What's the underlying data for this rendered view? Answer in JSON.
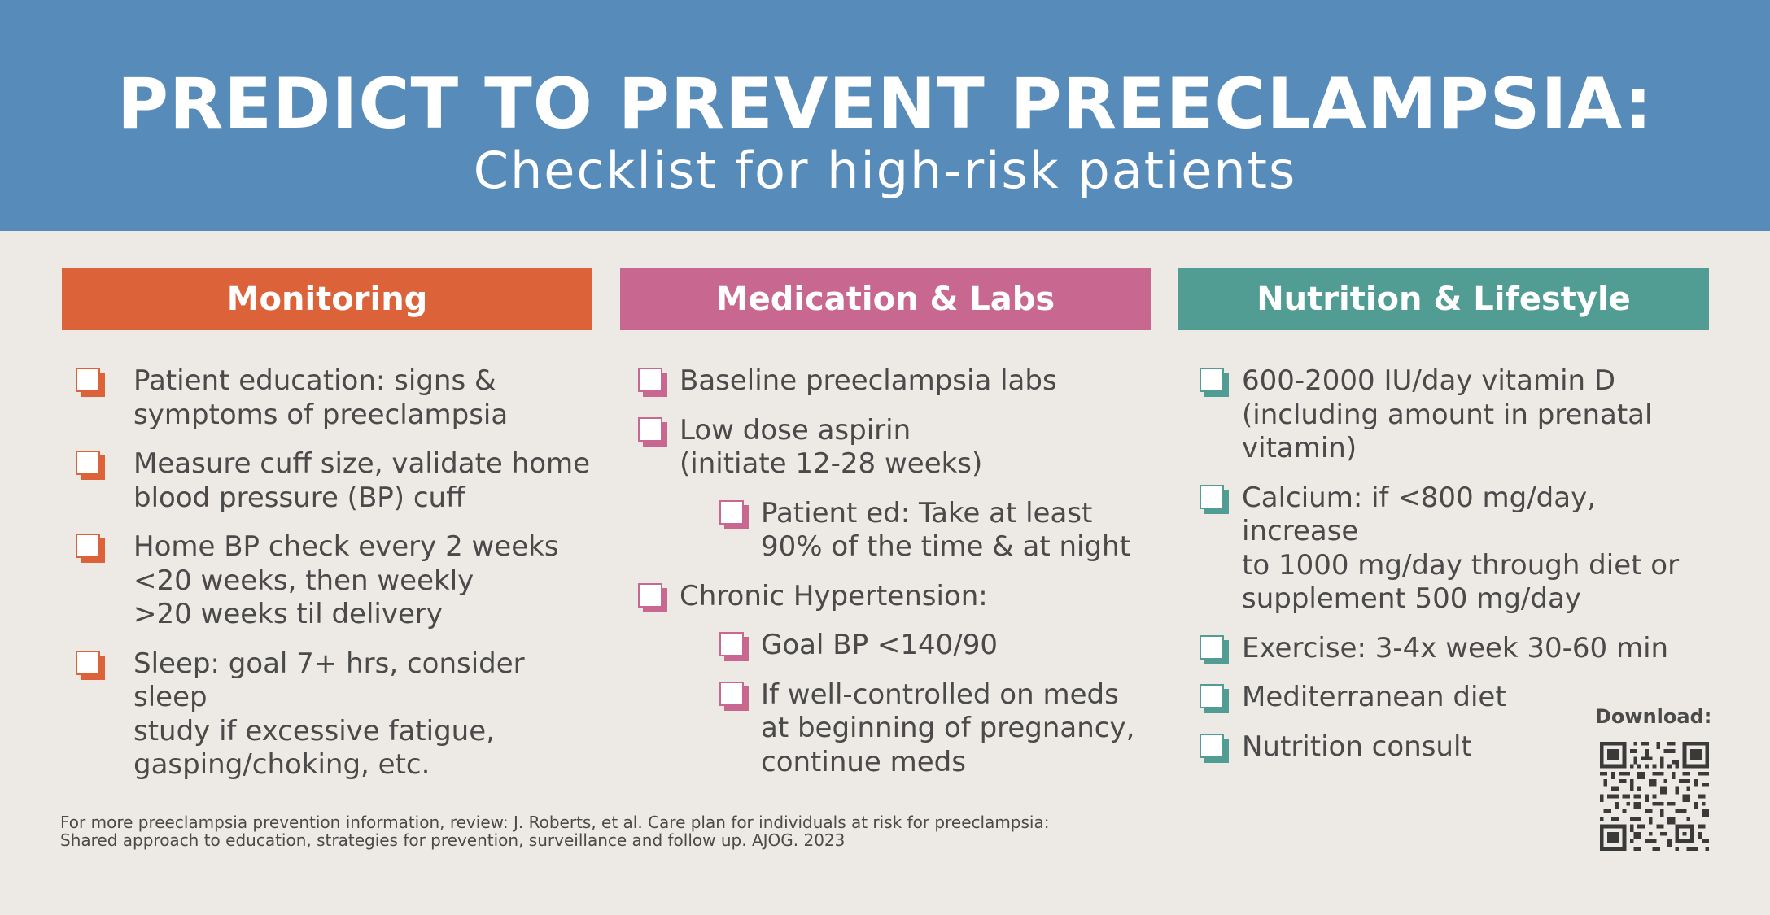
{
  "header": {
    "title": "PREDICT TO PREVENT PREECLAMPSIA:",
    "subtitle": "Checklist for high-risk patients",
    "background_color": "#568bba"
  },
  "columns": [
    {
      "heading": "Monitoring",
      "color": "#dc6239",
      "items": [
        "Patient education: signs &\nsymptoms of preeclampsia",
        "Measure cuff size, validate home\nblood pressure (BP) cuff",
        "Home BP check every 2 weeks\n<20 weeks, then weekly\n>20 weeks til delivery",
        "Sleep: goal 7+ hrs, consider sleep\nstudy if excessive fatigue,\ngasping/choking, etc."
      ]
    },
    {
      "heading": "Medication & Labs",
      "color": "#c8678f",
      "items": [
        "Baseline preeclampsia labs",
        "Low dose aspirin\n(initiate 12-28 weeks)",
        "Patient ed: Take at least\n90% of the time & at night",
        "Chronic Hypertension:",
        "Goal BP <140/90",
        "If well-controlled on meds\nat beginning of pregnancy,\ncontinue meds"
      ]
    },
    {
      "heading": "Nutrition & Lifestyle",
      "color": "#519d94",
      "items": [
        "600-2000 IU/day vitamin D\n(including amount in prenatal\nvitamin)",
        "Calcium: if <800 mg/day, increase\nto 1000 mg/day through diet or\nsupplement 500 mg/day",
        "Exercise: 3-4x week 30-60 min",
        "Mediterranean diet",
        "Nutrition consult"
      ]
    }
  ],
  "footer": {
    "line1": "For more preeclampsia prevention information, review: J. Roberts, et al. Care plan for individuals at risk for preeclampsia:",
    "line2": "Shared approach to education, strategies for prevention, surveillance and follow up. AJOG. 2023"
  },
  "download": {
    "label": "Download:",
    "qr_icon": "qr-code-icon"
  }
}
